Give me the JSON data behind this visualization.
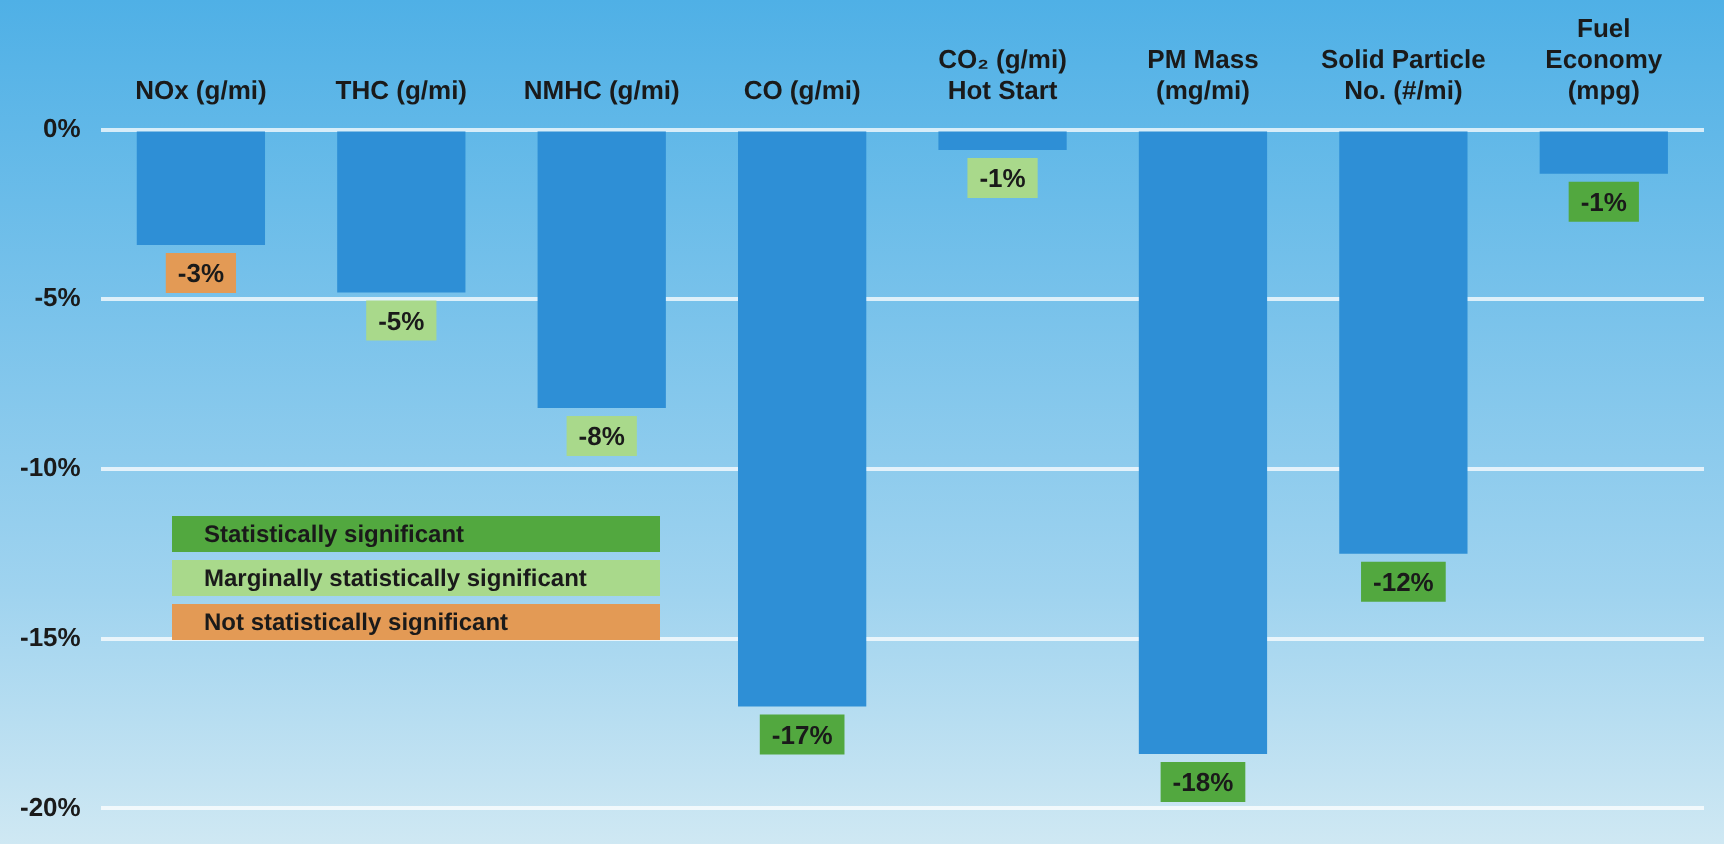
{
  "chart_data": {
    "type": "bar",
    "categories": [
      "NOx (g/mi)",
      "THC (g/mi)",
      "NMHC (g/mi)",
      "CO (g/mi)",
      "CO₂ (g/mi)\nHot Start",
      "PM Mass\n(mg/mi)",
      "Solid Particle\nNo. (#/mi)",
      "Fuel\nEconomy\n(mpg)"
    ],
    "series": [
      {
        "color": "#2e8fd6",
        "values": [
          -3.4,
          -4.8,
          -8.2,
          -17.0,
          -0.6,
          -18.4,
          -12.5,
          -1.3
        ],
        "value_labels": [
          "-3%",
          "-5%",
          "-8%",
          "-17%",
          "-1%",
          "-18%",
          "-12%",
          "-1%"
        ]
      }
    ],
    "ylim": [
      -20,
      0
    ],
    "yticks": [
      {
        "value": 0,
        "label": "0%"
      },
      {
        "value": -5,
        "label": "-5%"
      },
      {
        "value": -10,
        "label": "-10%"
      },
      {
        "value": -15,
        "label": "-15%"
      },
      {
        "value": -20,
        "label": "-20%"
      }
    ],
    "grid": "y",
    "annotations": [
      "Statistically significant",
      "Marginally statistically significant",
      "Not statistically significant"
    ]
  }
}
